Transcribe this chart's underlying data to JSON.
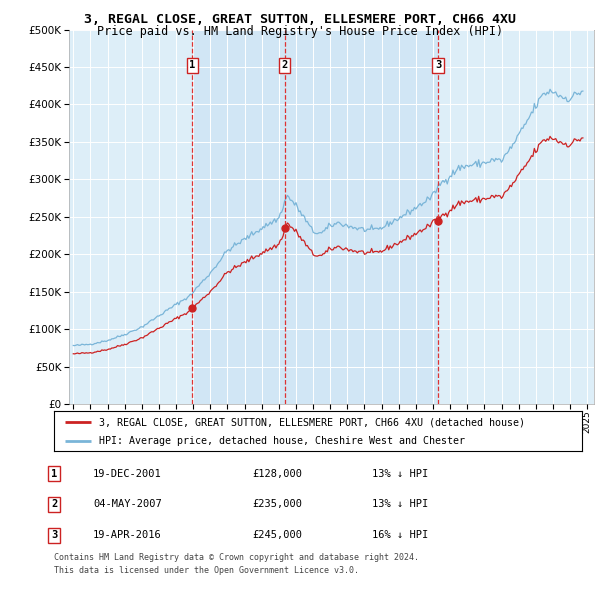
{
  "title": "3, REGAL CLOSE, GREAT SUTTON, ELLESMERE PORT, CH66 4XU",
  "subtitle": "Price paid vs. HM Land Registry's House Price Index (HPI)",
  "legend_label_red": "3, REGAL CLOSE, GREAT SUTTON, ELLESMERE PORT, CH66 4XU (detached house)",
  "legend_label_blue": "HPI: Average price, detached house, Cheshire West and Chester",
  "footer_line1": "Contains HM Land Registry data © Crown copyright and database right 2024.",
  "footer_line2": "This data is licensed under the Open Government Licence v3.0.",
  "transactions": [
    {
      "num": 1,
      "date": "19-DEC-2001",
      "price": 128000,
      "hpi_diff": "13% ↓ HPI"
    },
    {
      "num": 2,
      "date": "04-MAY-2007",
      "price": 235000,
      "hpi_diff": "13% ↓ HPI"
    },
    {
      "num": 3,
      "date": "19-APR-2016",
      "price": 245000,
      "hpi_diff": "16% ↓ HPI"
    }
  ],
  "transaction_dates_decimal": [
    2001.96,
    2007.34,
    2016.29
  ],
  "transaction_prices": [
    128000,
    235000,
    245000
  ],
  "ylim": [
    0,
    500000
  ],
  "yticks": [
    0,
    50000,
    100000,
    150000,
    200000,
    250000,
    300000,
    350000,
    400000,
    450000,
    500000
  ],
  "xlim_start": 1994.75,
  "xlim_end": 2025.4,
  "xticks": [
    1995,
    1996,
    1997,
    1998,
    1999,
    2000,
    2001,
    2002,
    2003,
    2004,
    2005,
    2006,
    2007,
    2008,
    2009,
    2010,
    2011,
    2012,
    2013,
    2014,
    2015,
    2016,
    2017,
    2018,
    2019,
    2020,
    2021,
    2022,
    2023,
    2024,
    2025
  ],
  "hpi_line_color": "#7ab5d8",
  "sale_line_color": "#cc2222",
  "vline_color": "#dd3333",
  "background_color": "#ddeef8",
  "shade_color": "#cce4f4",
  "grid_color": "#ffffff",
  "dot_color": "#cc2222"
}
